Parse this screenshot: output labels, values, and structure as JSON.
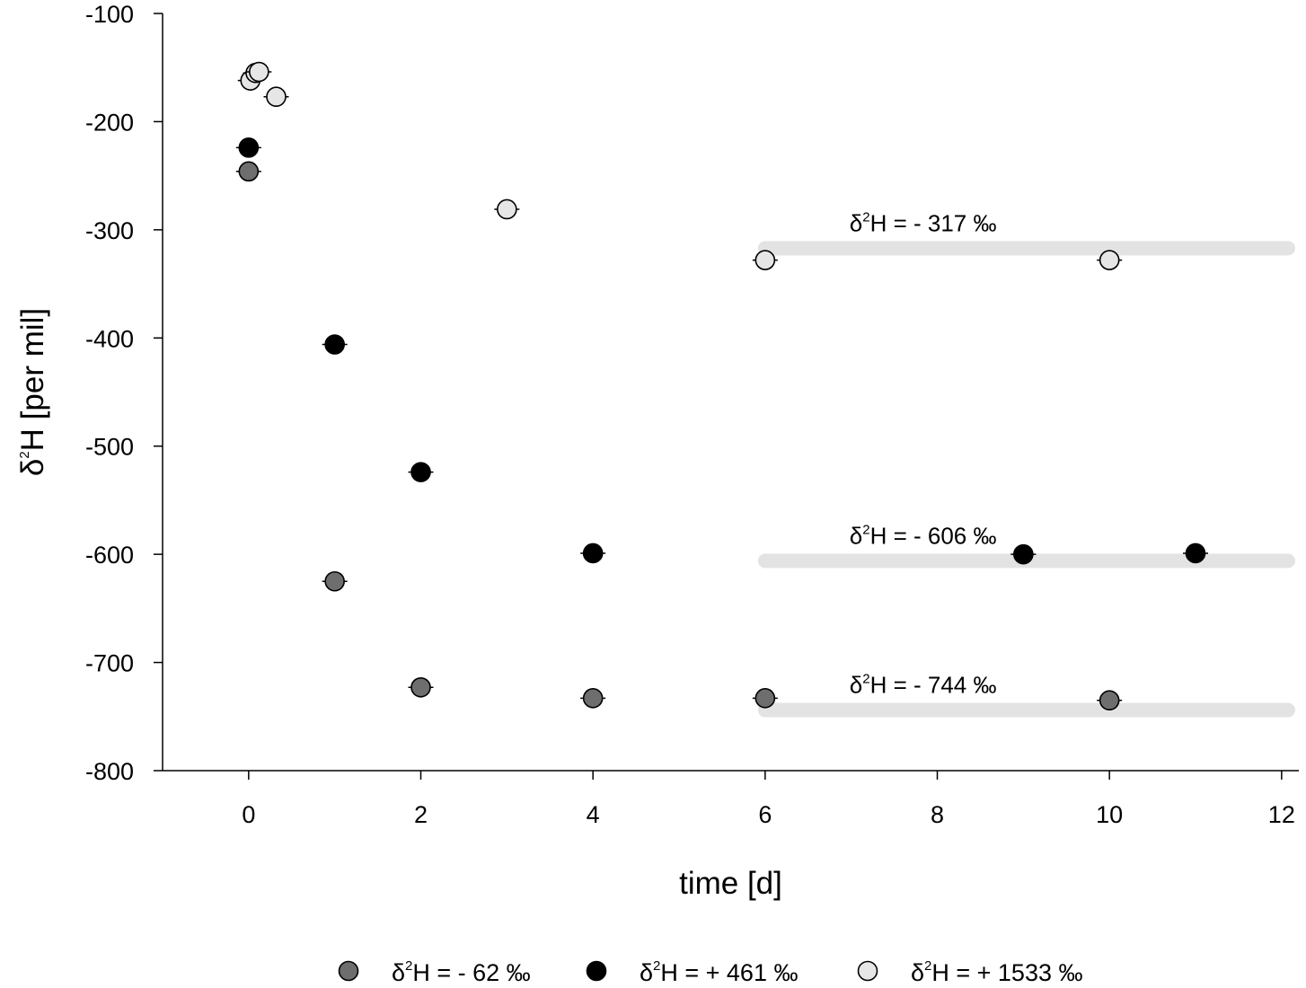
{
  "chart_data": {
    "type": "scatter",
    "title": "",
    "xlabel": "time [d]",
    "ylabel_prefix": "δ",
    "ylabel_sup": "2",
    "ylabel_suffix": "H [per mil]",
    "xlim": [
      -1,
      12.2
    ],
    "ylim": [
      -800,
      -100
    ],
    "x_ticks": [
      "0",
      "2",
      "4",
      "6",
      "8",
      "10",
      "12"
    ],
    "y_ticks": [
      "-100",
      "-200",
      "-300",
      "-400",
      "-500",
      "-600",
      "-700",
      "-800"
    ],
    "grid": false,
    "legend_position": "bottom",
    "series": [
      {
        "name_prefix": "δ",
        "name_sup": "2",
        "name_suffix": "H = - 62 ‰",
        "color": "#6e6e6e",
        "points": [
          [
            0,
            -246
          ],
          [
            1,
            -625
          ],
          [
            2,
            -723
          ],
          [
            4,
            -733
          ],
          [
            6,
            -733
          ],
          [
            10,
            -735
          ]
        ]
      },
      {
        "name_prefix": "δ",
        "name_sup": "2",
        "name_suffix": "H = + 461 ‰",
        "color": "#000000",
        "points": [
          [
            0,
            -224
          ],
          [
            1,
            -406
          ],
          [
            2,
            -524
          ],
          [
            4,
            -599
          ],
          [
            9,
            -600
          ],
          [
            11,
            -599
          ]
        ]
      },
      {
        "name_prefix": "δ",
        "name_sup": "2",
        "name_suffix": "H = + 1533 ‰",
        "color": "#e6e6e6",
        "points": [
          [
            0.02,
            -162
          ],
          [
            0.08,
            -155
          ],
          [
            0.12,
            -154
          ],
          [
            0.32,
            -177
          ],
          [
            3,
            -281
          ],
          [
            6,
            -328
          ],
          [
            10,
            -328
          ]
        ]
      }
    ],
    "reference_lines": [
      {
        "label_prefix": "δ",
        "label_sup": "2",
        "label_suffix": "H = - 317 ‰",
        "y": -317,
        "x_start": 6,
        "x_end": 12,
        "color": "#e3e3e3"
      },
      {
        "label_prefix": "δ",
        "label_sup": "2",
        "label_suffix": "H = - 606 ‰",
        "y": -606,
        "x_start": 6,
        "x_end": 12,
        "color": "#e3e3e3"
      },
      {
        "label_prefix": "δ",
        "label_sup": "2",
        "label_suffix": "H = - 744 ‰",
        "y": -744,
        "x_start": 6,
        "x_end": 12,
        "color": "#e3e3e3"
      }
    ]
  }
}
